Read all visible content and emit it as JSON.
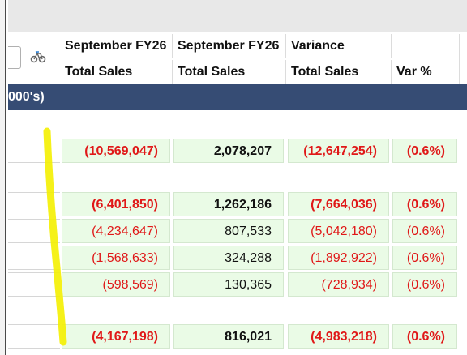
{
  "header": {
    "row1": [
      "September FY26",
      "September FY26",
      "Variance",
      ""
    ],
    "row2": [
      "Total Sales",
      "Total Sales",
      "Total Sales",
      "Var %"
    ]
  },
  "band": {
    "label": "000's)"
  },
  "rows": [
    {
      "a": "(10,569,047)",
      "b": "2,078,207",
      "c": "(12,647,254)",
      "d": "(0.6%)",
      "bold": true
    },
    {
      "a": "(6,401,850)",
      "b": "1,262,186",
      "c": "(7,664,036)",
      "d": "(0.6%)",
      "bold": true
    },
    {
      "a": "(4,234,647)",
      "b": "807,533",
      "c": "(5,042,180)",
      "d": "(0.6%)",
      "bold": false
    },
    {
      "a": "(1,568,633)",
      "b": "324,288",
      "c": "(1,892,922)",
      "d": "(0.6%)",
      "bold": false
    },
    {
      "a": "(598,569)",
      "b": "130,365",
      "c": "(728,934)",
      "d": "(0.6%)",
      "bold": false
    },
    {
      "a": "(4,167,198)",
      "b": "816,021",
      "c": "(4,983,218)",
      "d": "(0.6%)",
      "bold": true
    }
  ],
  "colors": {
    "negative": "#e01818",
    "band": "#364c74",
    "cell_bg": "#eafbe6",
    "highlight": "#ffff00"
  },
  "icons": {
    "drill": "drill-through-icon"
  }
}
